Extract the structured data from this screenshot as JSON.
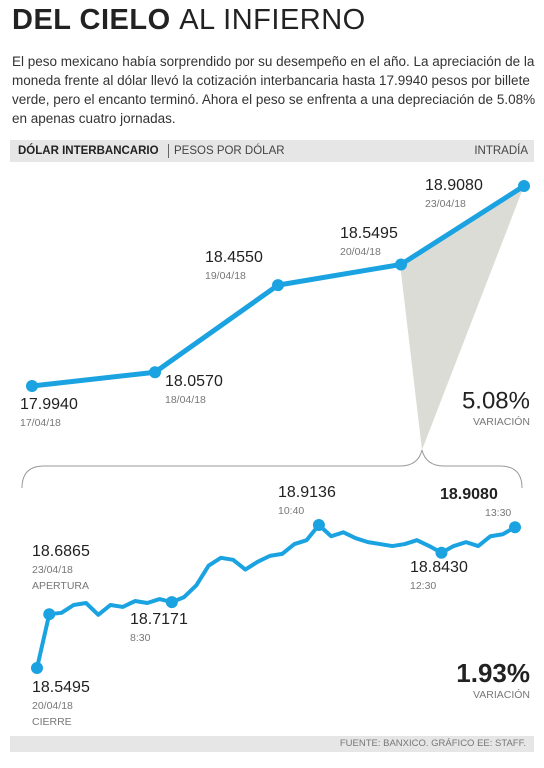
{
  "chart_data": [
    {
      "type": "line",
      "title_bold": "DEL CIELO",
      "title_light": "AL INFIERNO",
      "subtitle": "El peso mexicano había sorprendido por su desempeño en el año. La apreciación de la moneda frente al dólar llevó la cotización interbancaria hasta 17.9940 pesos por billete verde, pero el encanto terminó. Ahora el peso se enfrenta a una depreciación de 5.08% en apenas cuatro jornadas.",
      "header": "DÓLAR INTERBANCARIO",
      "unit": "PESOS POR DÓLAR",
      "categories": [
        "17/04/18",
        "18/04/18",
        "19/04/18",
        "20/04/18",
        "23/04/18"
      ],
      "values": [
        17.994,
        18.057,
        18.455,
        18.5495,
        18.908
      ],
      "value_labels": [
        "17.9940",
        "18.0570",
        "18.4550",
        "18.5495",
        "18.9080"
      ],
      "color": "#1aa3e0",
      "change": "5.08%",
      "change_label": "VARIACIÓN"
    },
    {
      "type": "line",
      "header": "INTRADÍA",
      "categories": [
        "20/04/18",
        "23/04/18",
        null,
        null,
        null,
        null,
        null,
        null,
        null,
        null,
        null,
        "8:30",
        null,
        null,
        null,
        null,
        null,
        null,
        null,
        null,
        null,
        null,
        null,
        "10:40",
        null,
        null,
        null,
        null,
        null,
        null,
        null,
        null,
        null,
        "12:30",
        null,
        null,
        null,
        null,
        null,
        "13:30"
      ],
      "notes": [
        "CIERRE",
        "APERTURA",
        null,
        null,
        null,
        null,
        null,
        null,
        null,
        null,
        null,
        null,
        null,
        null,
        null,
        null,
        null,
        null,
        null,
        null,
        null,
        null,
        null,
        null,
        null,
        null,
        null,
        null,
        null,
        null,
        null,
        null,
        null,
        null,
        null,
        null,
        null,
        null,
        null,
        null
      ],
      "values": [
        18.5495,
        18.6865,
        18.69,
        18.71,
        18.715,
        18.685,
        18.71,
        18.705,
        18.72,
        18.715,
        18.725,
        18.7171,
        18.73,
        18.76,
        18.81,
        18.83,
        18.825,
        18.8,
        18.82,
        18.835,
        18.84,
        18.865,
        18.875,
        18.9136,
        18.885,
        18.895,
        18.88,
        18.87,
        18.865,
        18.86,
        18.865,
        18.875,
        18.86,
        18.843,
        18.86,
        18.87,
        18.86,
        18.885,
        18.89,
        18.908
      ],
      "value_labels": [
        "18.5495",
        "18.6865",
        null,
        null,
        null,
        null,
        null,
        null,
        null,
        null,
        null,
        "18.7171",
        null,
        null,
        null,
        null,
        null,
        null,
        null,
        null,
        null,
        null,
        null,
        "18.9136",
        null,
        null,
        null,
        null,
        null,
        null,
        null,
        null,
        null,
        "18.8430",
        null,
        null,
        null,
        null,
        null,
        "18.9080"
      ],
      "color": "#1aa3e0",
      "change": "1.93%",
      "change_label": "VARIACIÓN",
      "source": "FUENTE: BANXICO. GRÁFICO EE: STAFF."
    }
  ]
}
